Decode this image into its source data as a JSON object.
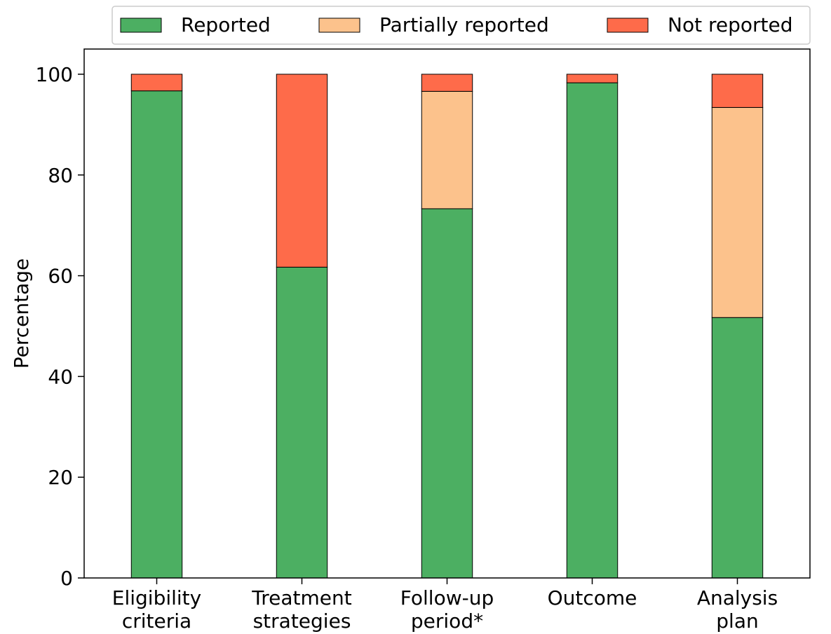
{
  "chart_data": {
    "type": "bar",
    "stacked": true,
    "categories": [
      [
        "Eligibility",
        "criteria"
      ],
      [
        "Treatment",
        "strategies"
      ],
      [
        "Follow-up",
        "period*"
      ],
      [
        "Outcome"
      ],
      [
        "Analysis",
        "plan"
      ]
    ],
    "series": [
      {
        "name": "Reported",
        "color": "#4caf62",
        "values": [
          96.7,
          61.7,
          73.3,
          98.3,
          51.7
        ]
      },
      {
        "name": "Partially reported",
        "color": "#fcc28c",
        "values": [
          0,
          0,
          23.3,
          0,
          41.7
        ]
      },
      {
        "name": "Not reported",
        "color": "#fe6b4a",
        "values": [
          3.3,
          38.3,
          3.4,
          1.7,
          6.6
        ]
      }
    ],
    "ylabel": "Percentage",
    "ylim": [
      0,
      105
    ],
    "yticks": [
      0,
      20,
      40,
      60,
      80,
      100
    ],
    "legend_position": "top-center",
    "grid": false
  }
}
